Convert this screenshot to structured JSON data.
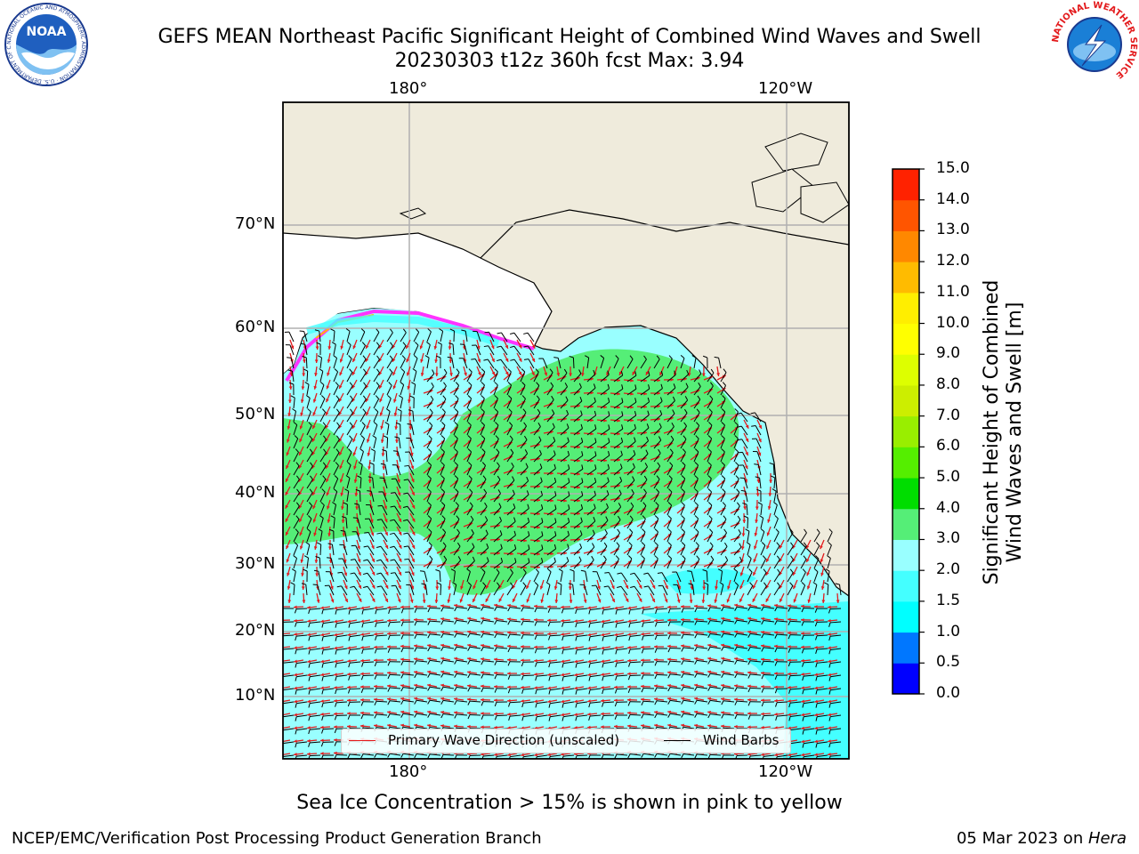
{
  "title": {
    "line1": "GEFS MEAN Northeast Pacific Significant Height of Combined Wind Waves and Swell",
    "line2": "20230303 t12z 360h fcst   Max: 3.94"
  },
  "logos": {
    "left": {
      "name": "NOAA",
      "text": "NOAA",
      "ring_text": "NATIONAL OCEANIC AND ATMOSPHERIC ADMINISTRATION · U.S. DEPARTMENT OF COMMERCE"
    },
    "right": {
      "name": "National Weather Service",
      "ring_text": "NATIONAL WEATHER SERVICE"
    }
  },
  "map": {
    "lon_labels_top": [
      "180°",
      "120°W"
    ],
    "lon_labels_bottom": [
      "180°",
      "120°W"
    ],
    "lat_labels": [
      "70°N",
      "60°N",
      "50°N",
      "40°N",
      "30°N",
      "20°N",
      "10°N"
    ],
    "colors": {
      "land": "#efebdc",
      "ice": "#ff33ff",
      "gridline": "#b0b0b0",
      "wave_arrow": "#e31a1c",
      "wind_barb": "#000000"
    },
    "field_levels": {
      "lt_1_5": "#00ffff",
      "1_5_to_2": "#44ffff",
      "2_to_3": "#99ffff",
      "3_to_4": "#55ee77"
    }
  },
  "legend": {
    "wave_label": "Primary Wave Direction (unscaled)",
    "barb_label": "Wind Barbs"
  },
  "colorbar": {
    "title_line1": "Significant Height of Combined",
    "title_line2": "Wind Waves and Swell [m]",
    "ticks": [
      "0.0",
      "0.5",
      "1.0",
      "1.5",
      "2.0",
      "3.0",
      "4.0",
      "5.0",
      "6.0",
      "7.0",
      "8.0",
      "9.0",
      "10.0",
      "11.0",
      "12.0",
      "13.0",
      "14.0",
      "15.0"
    ],
    "colors": [
      "#0000ff",
      "#0077ff",
      "#00ffff",
      "#44ffff",
      "#99ffff",
      "#55ee77",
      "#00dd00",
      "#55ee00",
      "#99ee00",
      "#ccee00",
      "#ddff00",
      "#ffff00",
      "#ffee00",
      "#ffbb00",
      "#ff8800",
      "#ff5500",
      "#ff2200"
    ]
  },
  "caption": "Sea Ice Concentration > 15% is shown in pink to yellow",
  "footer": {
    "left": "NCEP/EMC/Verification Post Processing Product Generation Branch",
    "right_date": "05 Mar 2023 on ",
    "right_machine": "Hera"
  }
}
